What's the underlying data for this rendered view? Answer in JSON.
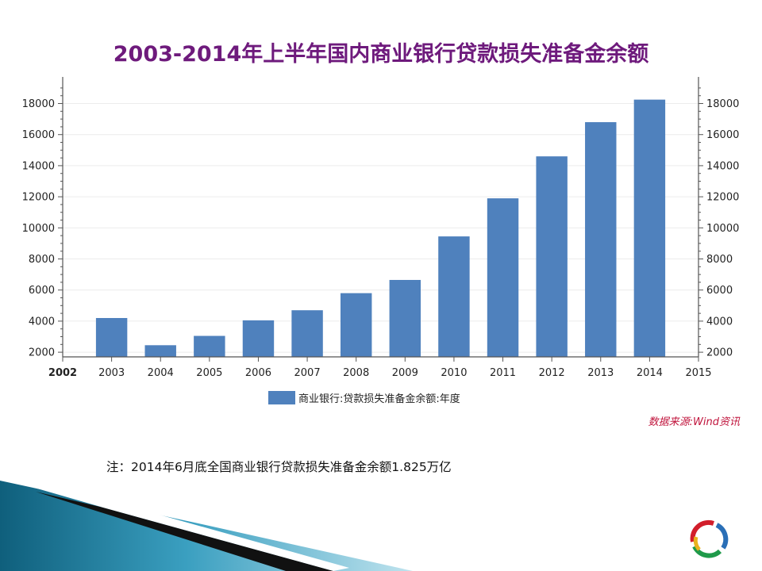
{
  "slide": {
    "title": "2003-2014年上半年国内商业银行贷款损失准备金余额",
    "source": "数据来源:Wind资讯",
    "note": "注：2014年6月底全国商业银行贷款损失准备金余额1.825万亿"
  },
  "colors": {
    "title": "#6e1a7c",
    "bar": "#4f81bd",
    "source": "#c0143c",
    "accent_teal": "#2a8fb0"
  },
  "chart_data": {
    "type": "bar",
    "title": "",
    "x_ticks": [
      "2002",
      "2003",
      "2004",
      "2005",
      "2006",
      "2007",
      "2008",
      "2009",
      "2010",
      "2011",
      "2012",
      "2013",
      "2014",
      "2015"
    ],
    "categories": [
      "2003",
      "2004",
      "2005",
      "2006",
      "2007",
      "2008",
      "2009",
      "2010",
      "2011",
      "2012",
      "2013",
      "2014"
    ],
    "series": [
      {
        "name": "商业银行:贷款损失准备金余额:年度",
        "values": [
          4200,
          2450,
          3050,
          4050,
          4700,
          5800,
          6650,
          9450,
          11900,
          14600,
          16800,
          18250
        ]
      }
    ],
    "y_ticks": [
      2000,
      4000,
      6000,
      8000,
      10000,
      12000,
      14000,
      16000,
      18000
    ],
    "ylim": [
      1700,
      19200
    ],
    "xlim": [
      2002,
      2015
    ],
    "dual_y_axis": true,
    "grid": true,
    "legend_position": "bottom-center"
  }
}
